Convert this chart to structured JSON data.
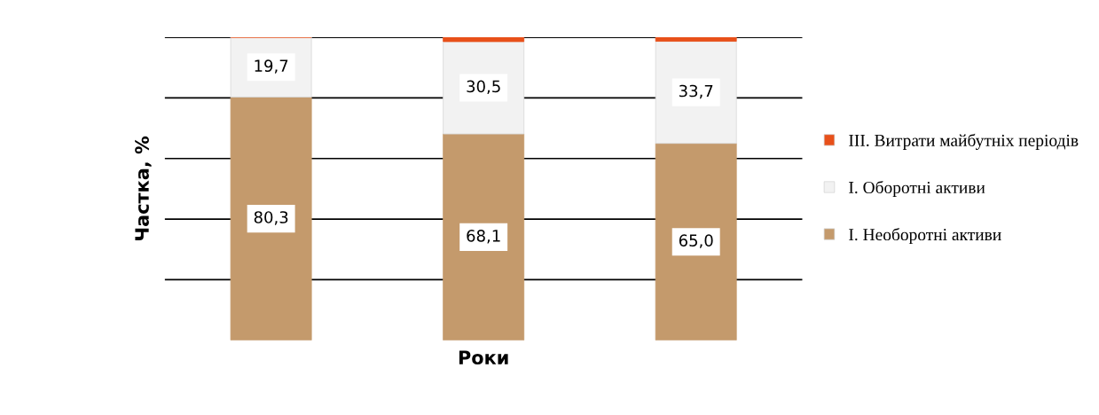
{
  "chart_data": {
    "type": "bar",
    "stacked": true,
    "xlabel": "Роки",
    "ylabel": "Частка, %",
    "categories": [
      null,
      null,
      null
    ],
    "series": [
      {
        "name": "I. Необоротні активи",
        "color": "#c49a6c",
        "values": [
          80.3,
          68.1,
          65.0
        ],
        "value_labels": [
          "80,3",
          "68,1",
          "65,0"
        ]
      },
      {
        "name": "I. Оборотні активи",
        "color": "#f2f2f2",
        "values": [
          19.7,
          30.5,
          33.7
        ],
        "value_labels": [
          "19,7",
          "30,5",
          "33,7"
        ]
      },
      {
        "name": "III. Витрати майбутніх періодів",
        "color": "#e8501a",
        "values": [
          null,
          1.4,
          1.3
        ]
      }
    ],
    "ylim": [
      0,
      100
    ],
    "yticks": [
      {
        "value": 20,
        "label": null
      },
      {
        "value": 40,
        "label": null
      },
      {
        "value": 60,
        "label": null
      },
      {
        "value": 80,
        "label": null
      },
      {
        "value": 100,
        "label": null
      }
    ],
    "tick_labels": false,
    "grid": "y",
    "legend": "right"
  }
}
